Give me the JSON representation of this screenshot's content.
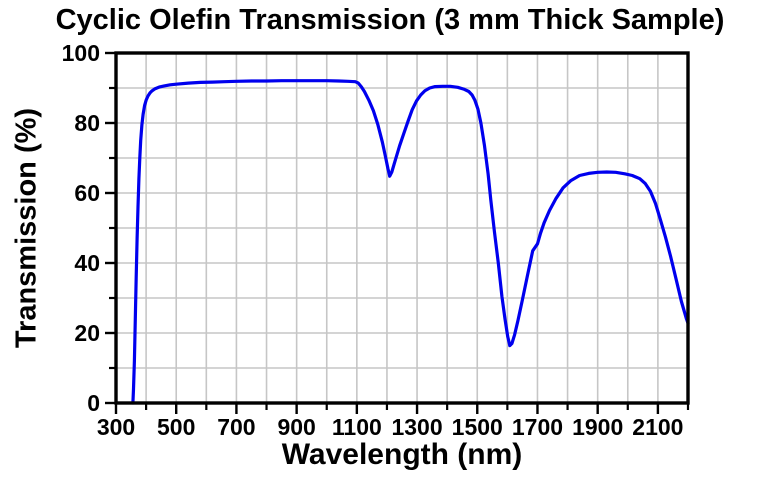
{
  "chart_data": {
    "type": "line",
    "title": "Cyclic Olefin Transmission (3 mm Thick Sample)",
    "xlabel": "Wavelength (nm)",
    "ylabel": "Transmission (%)",
    "xlim": [
      300,
      2200
    ],
    "ylim": [
      0,
      100
    ],
    "grid": true,
    "legend": "none",
    "x_major_ticks": [
      300,
      500,
      700,
      900,
      1100,
      1300,
      1500,
      1700,
      1900,
      2100
    ],
    "x_minor_ticks": [
      400,
      600,
      800,
      1000,
      1200,
      1400,
      1600,
      1800,
      2000,
      2200
    ],
    "y_major_ticks": [
      0,
      20,
      40,
      60,
      80,
      100
    ],
    "y_minor_ticks": [
      10,
      30,
      50,
      70,
      90
    ],
    "grid_x": [
      400,
      500,
      600,
      700,
      800,
      900,
      1000,
      1100,
      1200,
      1300,
      1400,
      1500,
      1600,
      1700,
      1800,
      1900,
      2000,
      2100
    ],
    "grid_y": [
      10,
      20,
      30,
      40,
      50,
      60,
      70,
      80,
      90
    ],
    "line_color": "#0000ee",
    "grid_color": "#c6c6c6",
    "frame_color": "#000000",
    "series": [
      {
        "name": "transmission",
        "points": [
          [
            356,
            0
          ],
          [
            358,
            4
          ],
          [
            361,
            12
          ],
          [
            364,
            24
          ],
          [
            367,
            36
          ],
          [
            370,
            47
          ],
          [
            373,
            56
          ],
          [
            376,
            64
          ],
          [
            379,
            70
          ],
          [
            382,
            75
          ],
          [
            386,
            79.5
          ],
          [
            390,
            82.5
          ],
          [
            395,
            85
          ],
          [
            400,
            86.5
          ],
          [
            406,
            87.7
          ],
          [
            413,
            88.6
          ],
          [
            420,
            89.2
          ],
          [
            430,
            89.8
          ],
          [
            445,
            90.3
          ],
          [
            460,
            90.6
          ],
          [
            480,
            90.9
          ],
          [
            500,
            91.1
          ],
          [
            540,
            91.4
          ],
          [
            580,
            91.6
          ],
          [
            620,
            91.7
          ],
          [
            660,
            91.8
          ],
          [
            700,
            91.9
          ],
          [
            750,
            92
          ],
          [
            800,
            92
          ],
          [
            850,
            92.1
          ],
          [
            900,
            92.1
          ],
          [
            950,
            92.1
          ],
          [
            1000,
            92.1
          ],
          [
            1040,
            92
          ],
          [
            1070,
            91.9
          ],
          [
            1095,
            91.8
          ],
          [
            1105,
            91.4
          ],
          [
            1115,
            90.3
          ],
          [
            1125,
            89
          ],
          [
            1140,
            86.5
          ],
          [
            1155,
            83.5
          ],
          [
            1170,
            79.5
          ],
          [
            1185,
            74.5
          ],
          [
            1195,
            70.5
          ],
          [
            1203,
            67
          ],
          [
            1209,
            64.8
          ],
          [
            1216,
            66
          ],
          [
            1228,
            69.5
          ],
          [
            1242,
            73.5
          ],
          [
            1256,
            77
          ],
          [
            1270,
            80.5
          ],
          [
            1284,
            83.8
          ],
          [
            1298,
            86.3
          ],
          [
            1312,
            88
          ],
          [
            1326,
            89.2
          ],
          [
            1342,
            90
          ],
          [
            1360,
            90.4
          ],
          [
            1385,
            90.5
          ],
          [
            1410,
            90.5
          ],
          [
            1435,
            90.2
          ],
          [
            1455,
            89.7
          ],
          [
            1472,
            89
          ],
          [
            1483,
            88
          ],
          [
            1492,
            86.5
          ],
          [
            1502,
            84
          ],
          [
            1512,
            80
          ],
          [
            1524,
            73.5
          ],
          [
            1536,
            65.5
          ],
          [
            1545,
            58
          ],
          [
            1557,
            49
          ],
          [
            1570,
            40
          ],
          [
            1582,
            30.5
          ],
          [
            1592,
            24
          ],
          [
            1601,
            19
          ],
          [
            1608,
            16.4
          ],
          [
            1615,
            17
          ],
          [
            1624,
            19.5
          ],
          [
            1635,
            23.5
          ],
          [
            1650,
            29.5
          ],
          [
            1667,
            36.5
          ],
          [
            1684,
            43.5
          ],
          [
            1700,
            45.5
          ],
          [
            1710,
            48.5
          ],
          [
            1722,
            51.5
          ],
          [
            1740,
            55
          ],
          [
            1762,
            58.5
          ],
          [
            1785,
            61.5
          ],
          [
            1810,
            63.5
          ],
          [
            1840,
            65
          ],
          [
            1870,
            65.6
          ],
          [
            1900,
            65.9
          ],
          [
            1930,
            66
          ],
          [
            1960,
            65.9
          ],
          [
            1990,
            65.5
          ],
          [
            2015,
            65
          ],
          [
            2040,
            64.1
          ],
          [
            2058,
            62.7
          ],
          [
            2075,
            60.5
          ],
          [
            2092,
            57
          ],
          [
            2108,
            52.5
          ],
          [
            2125,
            47.5
          ],
          [
            2142,
            42
          ],
          [
            2160,
            35.5
          ],
          [
            2178,
            29
          ],
          [
            2195,
            24
          ],
          [
            2200,
            22.8
          ]
        ]
      }
    ]
  }
}
